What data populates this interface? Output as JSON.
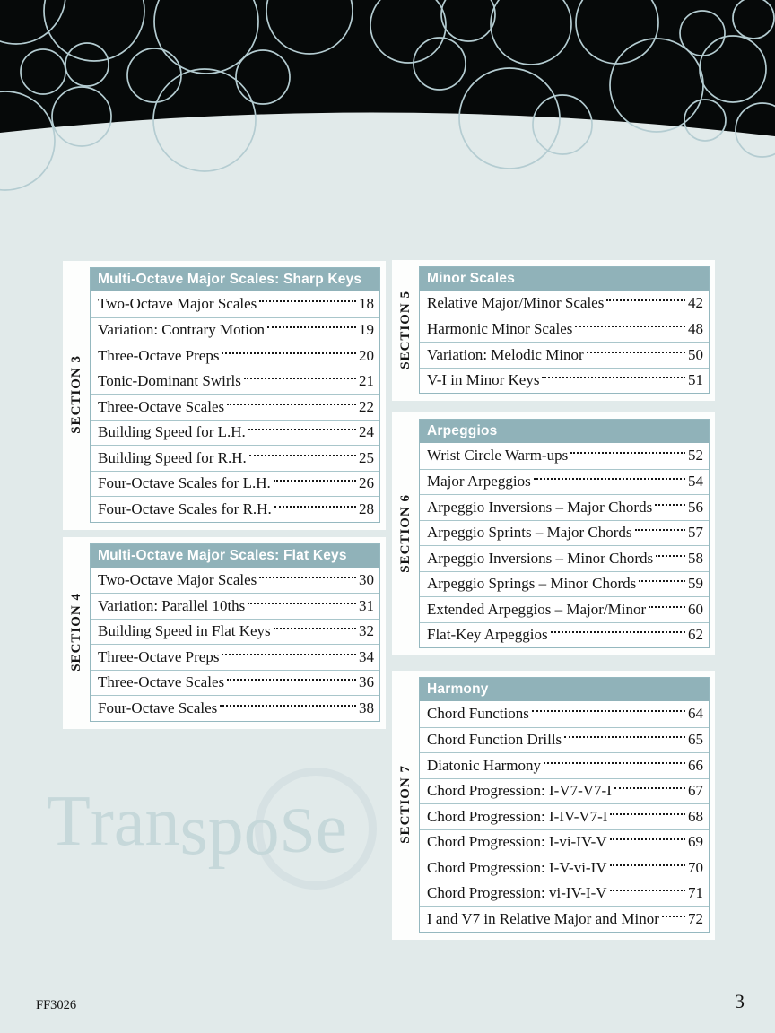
{
  "page": {
    "footer_code": "FF3026",
    "page_number": "3",
    "watermark": {
      "word": "Transpose",
      "segments": [
        {
          "text": "T",
          "part": "t"
        },
        {
          "text": "ran",
          "part": "ran"
        },
        {
          "text": "spo",
          "part": "spo"
        },
        {
          "text": "S",
          "part": "S"
        },
        {
          "text": "e",
          "part": "e"
        }
      ]
    },
    "colors": {
      "background": "#e1eaea",
      "header_black": "#060909",
      "circle_stroke": "#b4ccd1",
      "table_header_bg": "#90b2b9",
      "table_border": "#95b8bf",
      "row_line": "#a9c6cb",
      "panel_bg": "#fdfefd",
      "text": "#141414",
      "watermark_text": "#c6d8da",
      "watermark_ring": "#d6e1e3"
    }
  },
  "toc": {
    "columns": [
      {
        "side": "left",
        "panels": [
          {
            "section_label": "SECTION 3",
            "title": "Multi-Octave Major Scales: Sharp Keys",
            "entries": [
              {
                "title": "Two-Octave Major Scales",
                "page": "18"
              },
              {
                "title": "Variation: Contrary Motion",
                "page": "19"
              },
              {
                "title": "Three-Octave Preps",
                "page": "20"
              },
              {
                "title": "Tonic-Dominant Swirls",
                "page": "21"
              },
              {
                "title": "Three-Octave Scales",
                "page": "22"
              },
              {
                "title": "Building Speed for L.H.",
                "page": "24"
              },
              {
                "title": "Building Speed for R.H.",
                "page": "25"
              },
              {
                "title": "Four-Octave Scales for L.H.",
                "page": "26"
              },
              {
                "title": "Four-Octave Scales for R.H.",
                "page": "28"
              }
            ]
          },
          {
            "section_label": "SECTION 4",
            "title": "Multi-Octave Major Scales: Flat Keys",
            "entries": [
              {
                "title": "Two-Octave Major Scales",
                "page": "30"
              },
              {
                "title": "Variation: Parallel 10ths",
                "page": "31"
              },
              {
                "title": "Building Speed in Flat Keys",
                "page": "32"
              },
              {
                "title": "Three-Octave Preps",
                "page": "34"
              },
              {
                "title": "Three-Octave Scales",
                "page": "36"
              },
              {
                "title": "Four-Octave Scales",
                "page": "38"
              }
            ]
          }
        ]
      },
      {
        "side": "right",
        "panels": [
          {
            "section_label": "SECTION 5",
            "title": "Minor Scales",
            "entries": [
              {
                "title": "Relative Major/Minor Scales",
                "page": "42"
              },
              {
                "title": "Harmonic Minor Scales",
                "page": "48"
              },
              {
                "title": "Variation: Melodic Minor",
                "page": "50"
              },
              {
                "title": "V-I in Minor Keys",
                "page": "51"
              }
            ]
          },
          {
            "section_label": "SECTION 6",
            "title": "Arpeggios",
            "entries": [
              {
                "title": "Wrist Circle Warm-ups",
                "page": "52"
              },
              {
                "title": "Major Arpeggios",
                "page": "54"
              },
              {
                "title": "Arpeggio Inversions – Major Chords",
                "page": "56"
              },
              {
                "title": "Arpeggio Sprints – Major Chords",
                "page": "57"
              },
              {
                "title": "Arpeggio Inversions – Minor Chords",
                "page": "58"
              },
              {
                "title": "Arpeggio Springs – Minor Chords",
                "page": "59"
              },
              {
                "title": "Extended Arpeggios – Major/Minor",
                "page": "60"
              },
              {
                "title": "Flat-Key Arpeggios",
                "page": "62"
              }
            ]
          },
          {
            "section_label": "SECTION 7",
            "title": "Harmony",
            "entries": [
              {
                "title": "Chord Functions",
                "page": "64"
              },
              {
                "title": "Chord Function Drills",
                "page": "65"
              },
              {
                "title": "Diatonic Harmony",
                "page": "66"
              },
              {
                "title": "Chord Progression: I-V7-V7-I",
                "page": "67"
              },
              {
                "title": "Chord Progression: I-IV-V7-I",
                "page": "68"
              },
              {
                "title": "Chord Progression: I-vi-IV-V",
                "page": "69"
              },
              {
                "title": "Chord Progression: I-V-vi-IV",
                "page": "70"
              },
              {
                "title": "Chord Progression: vi-IV-I-V",
                "page": "71"
              },
              {
                "title": "I and V7 in Relative Major and Minor",
                "page": "72"
              }
            ]
          }
        ]
      }
    ]
  }
}
